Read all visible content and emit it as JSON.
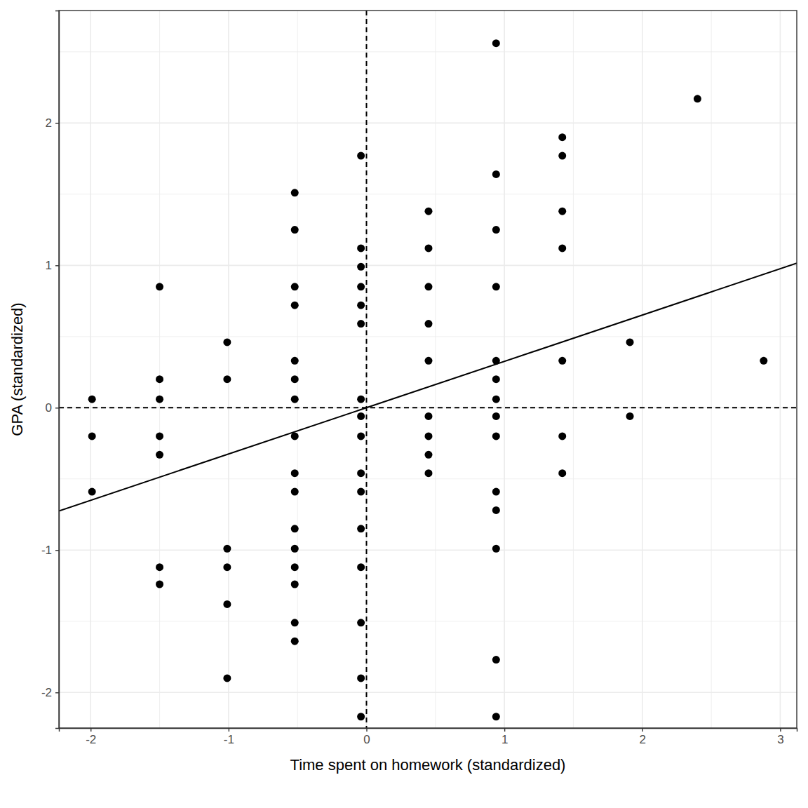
{
  "chart_data": {
    "type": "scatter",
    "x_label": "Time spent on homework (standardized)",
    "y_label": "GPA (standardized)",
    "xlim": [
      -2.23,
      3.12
    ],
    "ylim": [
      -2.25,
      2.79
    ],
    "xticks": [
      -2,
      -1,
      0,
      1,
      2,
      3
    ],
    "yticks": [
      -2,
      -1,
      0,
      1,
      2
    ],
    "minor_xticks": [
      -1.5,
      -0.5,
      0.5,
      1.5,
      2.5
    ],
    "minor_yticks": [
      -1.5,
      -0.5,
      0.5,
      1.5,
      2.5
    ],
    "grid": true,
    "reference_lines": {
      "x": [
        0
      ],
      "y": [
        0
      ],
      "line_style": "dashed"
    },
    "series": [
      {
        "type": "scatter",
        "marker": "circle",
        "color": "#000000",
        "x": [
          -1.99,
          -1.99,
          -1.99,
          -1.5,
          -1.5,
          -1.5,
          -1.5,
          -1.5,
          -1.5,
          -1.5,
          -1.01,
          -1.01,
          -1.01,
          -1.01,
          -1.01,
          -1.01,
          -0.52,
          -0.52,
          -0.52,
          -0.52,
          -0.52,
          -0.52,
          -0.52,
          -0.52,
          -0.52,
          -0.52,
          -0.52,
          -0.52,
          -0.52,
          -0.52,
          -0.52,
          -0.52,
          -0.04,
          -0.04,
          -0.04,
          -0.04,
          -0.04,
          -0.04,
          -0.04,
          -0.04,
          -0.04,
          -0.04,
          -0.04,
          -0.04,
          -0.04,
          -0.04,
          -0.04,
          -0.04,
          0.45,
          0.45,
          0.45,
          0.45,
          0.45,
          0.45,
          0.45,
          0.45,
          0.45,
          0.94,
          0.94,
          0.94,
          0.94,
          0.94,
          0.94,
          0.94,
          0.94,
          0.94,
          0.94,
          0.94,
          0.94,
          0.94,
          0.94,
          1.42,
          1.42,
          1.42,
          1.42,
          1.42,
          1.42,
          1.42,
          1.91,
          1.91,
          2.4,
          2.88
        ],
        "values": [
          0.06,
          -0.2,
          -0.59,
          0.85,
          0.2,
          0.06,
          -0.2,
          -0.33,
          -1.12,
          -1.24,
          0.46,
          0.2,
          -0.99,
          -1.12,
          -1.38,
          -1.9,
          1.51,
          1.25,
          0.85,
          0.72,
          0.33,
          0.2,
          0.06,
          -0.2,
          -0.46,
          -0.59,
          -0.85,
          -0.99,
          -1.12,
          -1.24,
          -1.51,
          -1.64,
          1.77,
          1.12,
          0.99,
          0.85,
          0.72,
          0.59,
          0.06,
          -0.06,
          -0.2,
          -0.46,
          -0.59,
          -0.85,
          -1.12,
          -1.51,
          -1.9,
          -2.17,
          1.38,
          1.12,
          0.85,
          0.59,
          0.33,
          -0.06,
          -0.2,
          -0.33,
          -0.46,
          2.56,
          1.64,
          1.25,
          0.85,
          0.33,
          0.2,
          0.06,
          -0.06,
          -0.2,
          -0.59,
          -0.72,
          -0.99,
          -1.77,
          -2.17,
          1.9,
          1.77,
          1.38,
          1.12,
          0.33,
          -0.2,
          -0.46,
          0.46,
          -0.06,
          2.17,
          0.33
        ]
      },
      {
        "type": "line",
        "line_style": "solid",
        "color": "#000000",
        "x": [
          -2.23,
          3.12
        ],
        "values": [
          -0.725,
          1.015
        ]
      }
    ]
  }
}
